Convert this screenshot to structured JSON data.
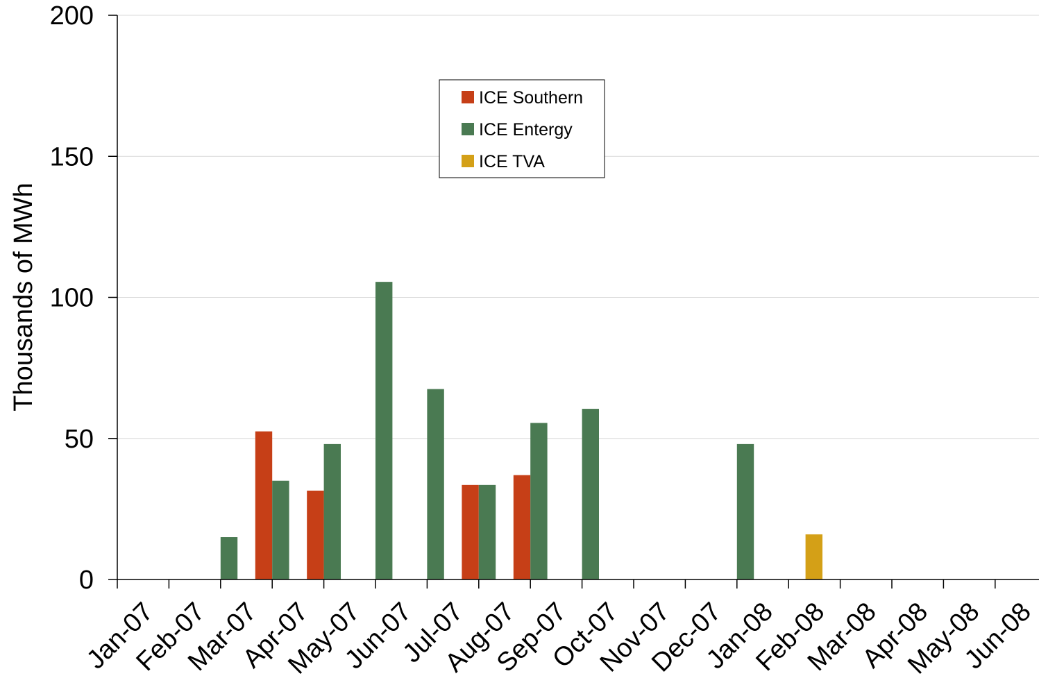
{
  "chart_data": {
    "type": "bar",
    "title": "",
    "xlabel": "",
    "ylabel": "Thousands of MWh",
    "ylim": [
      0,
      200
    ],
    "yticks": [
      "0",
      "50",
      "100",
      "150",
      "200"
    ],
    "grid": true,
    "legend_position": "top-center",
    "categories": [
      "Jan-07",
      "Feb-07",
      "Mar-07",
      "Apr-07",
      "May-07",
      "Jun-07",
      "Jul-07",
      "Aug-07",
      "Sep-07",
      "Oct-07",
      "Nov-07",
      "Dec-07",
      "Jan-08",
      "Feb-08",
      "Mar-08",
      "Apr-08",
      "May-08",
      "Jun-08"
    ],
    "series": [
      {
        "name": "ICE Southern",
        "color": "#c63f17",
        "values": [
          0,
          0,
          52.5,
          31.5,
          0,
          0,
          33.5,
          37,
          0,
          0,
          0,
          0,
          0,
          0,
          0,
          0,
          0,
          0
        ]
      },
      {
        "name": "ICE Entergy",
        "color": "#4a7a52",
        "values": [
          0,
          15,
          35,
          48,
          105.5,
          67.5,
          33.5,
          55.5,
          60.5,
          0,
          0,
          48,
          0,
          0,
          0,
          0,
          0,
          0
        ]
      },
      {
        "name": "ICE TVA",
        "color": "#d4a017",
        "values": [
          0,
          0,
          0,
          0,
          0,
          0,
          0,
          0,
          0,
          0,
          0,
          0,
          16,
          0,
          0,
          0,
          0,
          0
        ]
      }
    ]
  }
}
